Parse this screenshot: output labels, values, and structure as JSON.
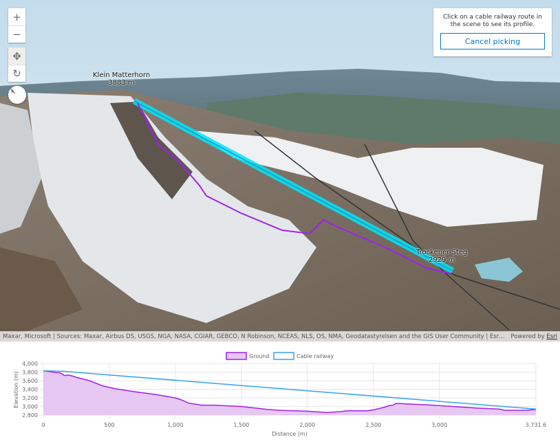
{
  "controls": {
    "zoom_in": "+",
    "zoom_out": "−",
    "pan_icon": "move-icon",
    "rotate_icon": "rotate-icon",
    "compass_icon": "compass-icon"
  },
  "panel": {
    "message": "Click on a cable railway route in the scene to see its profile.",
    "cancel_label": "Cancel picking"
  },
  "scene_labels": [
    {
      "name": "Klein Matterhorn",
      "elevation": "3883 m"
    },
    {
      "name": "Trockener Steg",
      "elevation": "2929 m"
    }
  ],
  "attribution": {
    "sources": "Maxar, Microsoft | Sources: Maxar, Airbus DS, USGS, NGA, NASA, CGIAR, GEBCO, N Robinson, NCEAS, NLS, OS, NMA, Geodatastyrelsen and the GIS User Community | Esri Co…",
    "powered_by": "Powered by",
    "esri": "Esri"
  },
  "colors": {
    "ground": "#a020f0",
    "ground_fill": "#e6c8f2",
    "cable": "#36a2eb",
    "accent": "#0079c1"
  },
  "chart_data": {
    "type": "area",
    "xlabel": "Distance (m)",
    "ylabel": "Elevation (m)",
    "xlim": [
      0,
      3731.6
    ],
    "ylim": [
      2800,
      4000
    ],
    "xticks": [
      "0",
      "500",
      "1,000",
      "1,500",
      "2,000",
      "2,500",
      "3,000",
      "3,731.6"
    ],
    "xtick_values": [
      0,
      500,
      1000,
      1500,
      2000,
      2500,
      3000,
      3731.6
    ],
    "yticks": [
      "4,000",
      "3,800",
      "3,600",
      "3,400",
      "3,200",
      "3,000",
      "2,800"
    ],
    "ytick_values": [
      4000,
      3800,
      3600,
      3400,
      3200,
      3000,
      2800
    ],
    "grid": true,
    "legend": "top",
    "series": [
      {
        "name": "Ground",
        "x": [
          0,
          100,
          130,
          160,
          190,
          220,
          250,
          350,
          450,
          550,
          700,
          850,
          1000,
          1050,
          1100,
          1200,
          1300,
          1500,
          1700,
          1800,
          2000,
          2150,
          2250,
          2300,
          2450,
          2500,
          2580,
          2620,
          2650,
          2670,
          2700,
          2750,
          2900,
          3100,
          3300,
          3450,
          3500,
          3650,
          3731.6
        ],
        "y": [
          3830,
          3790,
          3780,
          3720,
          3730,
          3710,
          3680,
          3600,
          3480,
          3410,
          3340,
          3280,
          3200,
          3150,
          3080,
          3030,
          3030,
          3000,
          2930,
          2910,
          2890,
          2860,
          2880,
          2900,
          2900,
          2920,
          2980,
          3020,
          3030,
          3070,
          3070,
          3060,
          3040,
          3000,
          2960,
          2940,
          2910,
          2910,
          2930
        ]
      },
      {
        "name": "Cable railway",
        "x": [
          0,
          150,
          3731.6
        ],
        "y": [
          3830,
          3820,
          2940
        ]
      }
    ]
  }
}
